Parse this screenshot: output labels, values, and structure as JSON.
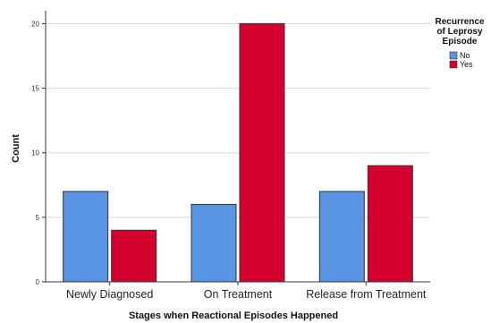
{
  "chart_data": {
    "type": "bar",
    "categories": [
      "Newly Diagnosed",
      "On Treatment",
      "Release from Treatment"
    ],
    "series": [
      {
        "name": "No",
        "values": [
          7,
          6,
          7
        ],
        "color": "#5894e2"
      },
      {
        "name": "Yes",
        "values": [
          4,
          20,
          9
        ],
        "color": "#d4002d"
      }
    ],
    "xlabel": "Stages when Reactional Episodes Happened",
    "ylabel": "Count",
    "ylim": [
      0,
      21
    ],
    "yticks": [
      0,
      5,
      10,
      15,
      20
    ],
    "grid": true,
    "legend": {
      "title_lines": [
        "Recurrence",
        "of Leprosy",
        "Episode"
      ],
      "placement": "top-right"
    }
  }
}
